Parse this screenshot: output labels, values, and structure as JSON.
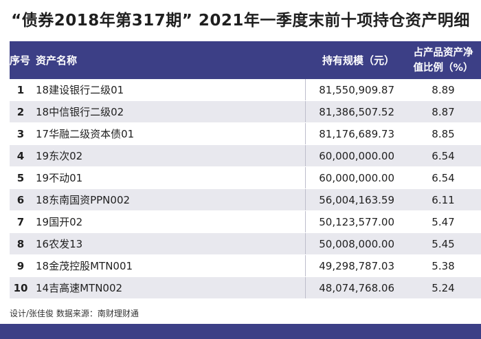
{
  "title": "“债券2018年第317期” 2021年一季度末前十项持仓资产明细",
  "table": {
    "headers": {
      "no": "序号",
      "name": "资产名称",
      "amount": "持有规模（元）",
      "ratio_line1": "占产品资产净",
      "ratio_line2": "值比例（%）"
    },
    "rows": [
      {
        "no": "1",
        "name": "18建设银行二级01",
        "amount": "81,550,909.87",
        "ratio": "8.89"
      },
      {
        "no": "2",
        "name": "18中信银行二级02",
        "amount": "81,386,507.52",
        "ratio": "8.87"
      },
      {
        "no": "3",
        "name": "17华融二级资本债01",
        "amount": "81,176,689.73",
        "ratio": "8.85"
      },
      {
        "no": "4",
        "name": "19东次02",
        "amount": "60,000,000.00",
        "ratio": "6.54"
      },
      {
        "no": "5",
        "name": "19不动01",
        "amount": "60,000,000.00",
        "ratio": "6.54"
      },
      {
        "no": "6",
        "name": "18东南国资PPN002",
        "amount": "56,004,163.59",
        "ratio": "6.11"
      },
      {
        "no": "7",
        "name": "19国开02",
        "amount": "50,123,577.00",
        "ratio": "5.47"
      },
      {
        "no": "8",
        "name": "16农发13",
        "amount": "50,008,000.00",
        "ratio": "5.45"
      },
      {
        "no": "9",
        "name": "18金茂控股MTN001",
        "amount": "49,298,787.03",
        "ratio": "5.38"
      },
      {
        "no": "10",
        "name": "14吉高速MTN002",
        "amount": "48,074,768.06",
        "ratio": "5.24"
      }
    ]
  },
  "footer": "设计/张佳俊 数据来源：南财理财通",
  "colors": {
    "header_bg": "#3c3f86",
    "stripe": "#e8e8ee"
  }
}
